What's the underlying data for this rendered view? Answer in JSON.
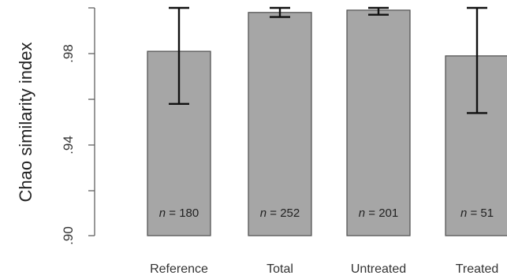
{
  "chart_data": {
    "type": "bar",
    "title": "",
    "xlabel": "",
    "ylabel": "Chao similarity index",
    "ylim": [
      0.9,
      1.0
    ],
    "yticks": [
      0.9,
      0.92,
      0.94,
      0.96,
      0.98
    ],
    "ytick_labels": [
      ".90",
      "",
      ".94",
      "",
      ".98"
    ],
    "categories": [
      "Reference",
      "Total",
      "Untreated",
      "Treated"
    ],
    "values": [
      0.981,
      0.998,
      0.999,
      0.979
    ],
    "error_low": [
      0.958,
      0.996,
      0.997,
      0.954
    ],
    "error_high": [
      1.001,
      1.0,
      1.0,
      1.001
    ],
    "n_prefix": "n",
    "n_values": [
      "= 180",
      "= 252",
      "= 201",
      "= 51"
    ],
    "bar_color": "#a6a6a6",
    "bar_edge_color": "#4d4d4d",
    "error_color": "#111111",
    "grid": false,
    "legend": "none"
  }
}
